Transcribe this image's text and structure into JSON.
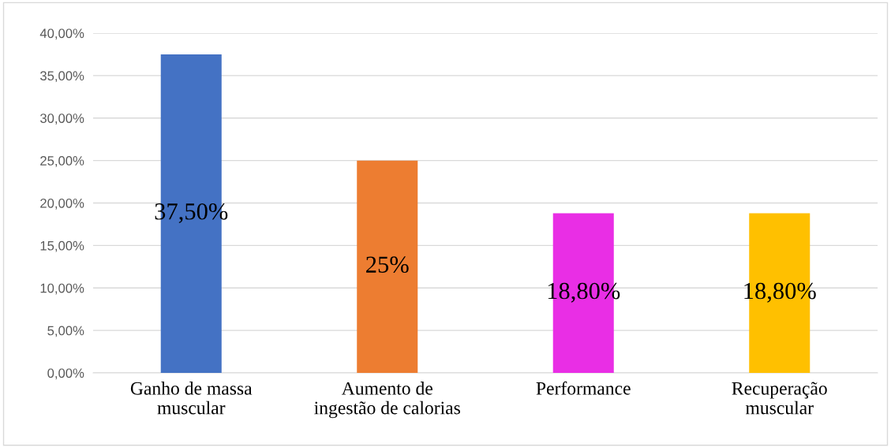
{
  "chart_data": {
    "type": "bar",
    "categories": [
      "Ganho de massa\nmuscular",
      "Aumento de\ningestão de calorias",
      "Performance",
      "Recuperação\nmuscular"
    ],
    "values": [
      37.5,
      25,
      18.8,
      18.8
    ],
    "colors": [
      "#4472c4",
      "#ed7d31",
      "#e92ee5",
      "#ffc000"
    ],
    "value_labels": [
      "37,50%",
      "25%",
      "18,80%",
      "18,80%"
    ],
    "ylim": [
      0,
      40
    ],
    "yticks": [
      {
        "value": 0,
        "label": "0,00%"
      },
      {
        "value": 5,
        "label": "5,00%"
      },
      {
        "value": 10,
        "label": "10,00%"
      },
      {
        "value": 15,
        "label": "15,00%"
      },
      {
        "value": 20,
        "label": "20,00%"
      },
      {
        "value": 25,
        "label": "25,00%"
      },
      {
        "value": 30,
        "label": "30,00%"
      },
      {
        "value": 35,
        "label": "35,00%"
      },
      {
        "value": 40,
        "label": "40,00%"
      }
    ],
    "grid": "y"
  }
}
